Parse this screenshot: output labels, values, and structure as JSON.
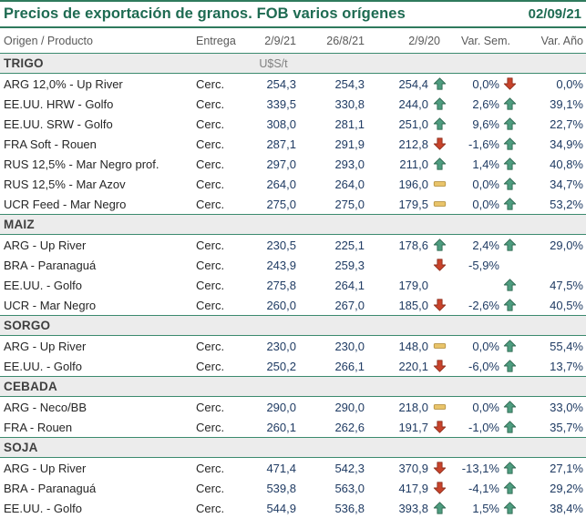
{
  "header": {
    "title": "Precios de exportación de granos. FOB varios orígenes",
    "date": "02/09/21"
  },
  "columns": [
    "Origen / Producto",
    "Entrega",
    "2/9/21",
    "26/8/21",
    "2/9/20",
    "Var. Sem.",
    "Var. Año"
  ],
  "colors": {
    "accent_green": "#1E6B52",
    "line_green": "#3B8A6E",
    "band_bg": "#ECECEC",
    "header_text": "#595959",
    "value_text": "#1F3B63",
    "arrow_up": "#4E9C7F",
    "arrow_up_border": "#2F6A52",
    "arrow_down": "#C8432B",
    "arrow_down_border": "#8E2F1D",
    "flat": "#E9C46A",
    "flat_border": "#B5913F"
  },
  "sections": [
    {
      "name": "TRIGO",
      "unit": "U$S/t",
      "rows": [
        {
          "product": "ARG 12,0% - Up River",
          "entrega": "Cerc.",
          "p_current": "254,3",
          "p_week": "254,3",
          "p_year": "254,4",
          "sem_icon": "up",
          "var_sem": "0,0%",
          "ano_icon": "down",
          "var_ano": "0,0%"
        },
        {
          "product": "EE.UU. HRW - Golfo",
          "entrega": "Cerc.",
          "p_current": "339,5",
          "p_week": "330,8",
          "p_year": "244,0",
          "sem_icon": "up",
          "var_sem": "2,6%",
          "ano_icon": "up",
          "var_ano": "39,1%"
        },
        {
          "product": "EE.UU. SRW - Golfo",
          "entrega": "Cerc.",
          "p_current": "308,0",
          "p_week": "281,1",
          "p_year": "251,0",
          "sem_icon": "up",
          "var_sem": "9,6%",
          "ano_icon": "up",
          "var_ano": "22,7%"
        },
        {
          "product": "FRA Soft - Rouen",
          "entrega": "Cerc.",
          "p_current": "287,1",
          "p_week": "291,9",
          "p_year": "212,8",
          "sem_icon": "down",
          "var_sem": "-1,6%",
          "ano_icon": "up",
          "var_ano": "34,9%"
        },
        {
          "product": "RUS 12,5% - Mar Negro prof.",
          "entrega": "Cerc.",
          "p_current": "297,0",
          "p_week": "293,0",
          "p_year": "211,0",
          "sem_icon": "up",
          "var_sem": "1,4%",
          "ano_icon": "up",
          "var_ano": "40,8%"
        },
        {
          "product": "RUS 12,5% - Mar Azov",
          "entrega": "Cerc.",
          "p_current": "264,0",
          "p_week": "264,0",
          "p_year": "196,0",
          "sem_icon": "flat",
          "var_sem": "0,0%",
          "ano_icon": "up",
          "var_ano": "34,7%"
        },
        {
          "product": "UCR Feed - Mar Negro",
          "entrega": "Cerc.",
          "p_current": "275,0",
          "p_week": "275,0",
          "p_year": "179,5",
          "sem_icon": "flat",
          "var_sem": "0,0%",
          "ano_icon": "up",
          "var_ano": "53,2%"
        }
      ]
    },
    {
      "name": "MAIZ",
      "unit": "",
      "rows": [
        {
          "product": "ARG - Up River",
          "entrega": "Cerc.",
          "p_current": "230,5",
          "p_week": "225,1",
          "p_year": "178,6",
          "sem_icon": "up",
          "var_sem": "2,4%",
          "ano_icon": "up",
          "var_ano": "29,0%"
        },
        {
          "product": "BRA - Paranaguá",
          "entrega": "Cerc.",
          "p_current": "243,9",
          "p_week": "259,3",
          "p_year": "",
          "sem_icon": "down",
          "var_sem": "-5,9%",
          "ano_icon": "",
          "var_ano": ""
        },
        {
          "product": "EE.UU. - Golfo",
          "entrega": "Cerc.",
          "p_current": "275,8",
          "p_week": "264,1",
          "p_year": "179,0",
          "sem_icon": "",
          "var_sem": "",
          "ano_icon": "up",
          "var_ano": "47,5%"
        },
        {
          "product": "UCR - Mar Negro",
          "entrega": "Cerc.",
          "p_current": "260,0",
          "p_week": "267,0",
          "p_year": "185,0",
          "sem_icon": "down",
          "var_sem": "-2,6%",
          "ano_icon": "up",
          "var_ano": "40,5%"
        }
      ]
    },
    {
      "name": "SORGO",
      "unit": "",
      "rows": [
        {
          "product": "ARG - Up River",
          "entrega": "Cerc.",
          "p_current": "230,0",
          "p_week": "230,0",
          "p_year": "148,0",
          "sem_icon": "flat",
          "var_sem": "0,0%",
          "ano_icon": "up",
          "var_ano": "55,4%"
        },
        {
          "product": "EE.UU. - Golfo",
          "entrega": "Cerc.",
          "p_current": "250,2",
          "p_week": "266,1",
          "p_year": "220,1",
          "sem_icon": "down",
          "var_sem": "-6,0%",
          "ano_icon": "up",
          "var_ano": "13,7%"
        }
      ]
    },
    {
      "name": "CEBADA",
      "unit": "",
      "rows": [
        {
          "product": "ARG - Neco/BB",
          "entrega": "Cerc.",
          "p_current": "290,0",
          "p_week": "290,0",
          "p_year": "218,0",
          "sem_icon": "flat",
          "var_sem": "0,0%",
          "ano_icon": "up",
          "var_ano": "33,0%"
        },
        {
          "product": "FRA - Rouen",
          "entrega": "Cerc.",
          "p_current": "260,1",
          "p_week": "262,6",
          "p_year": "191,7",
          "sem_icon": "down",
          "var_sem": "-1,0%",
          "ano_icon": "up",
          "var_ano": "35,7%"
        }
      ]
    },
    {
      "name": "SOJA",
      "unit": "",
      "rows": [
        {
          "product": "ARG - Up River",
          "entrega": "Cerc.",
          "p_current": "471,4",
          "p_week": "542,3",
          "p_year": "370,9",
          "sem_icon": "down",
          "var_sem": "-13,1%",
          "ano_icon": "up",
          "var_ano": "27,1%"
        },
        {
          "product": "BRA - Paranaguá",
          "entrega": "Cerc.",
          "p_current": "539,8",
          "p_week": "563,0",
          "p_year": "417,9",
          "sem_icon": "down",
          "var_sem": "-4,1%",
          "ano_icon": "up",
          "var_ano": "29,2%"
        },
        {
          "product": "EE.UU. - Golfo",
          "entrega": "Cerc.",
          "p_current": "544,9",
          "p_week": "536,8",
          "p_year": "393,8",
          "sem_icon": "up",
          "var_sem": "1,5%",
          "ano_icon": "up",
          "var_ano": "38,4%"
        }
      ]
    }
  ]
}
